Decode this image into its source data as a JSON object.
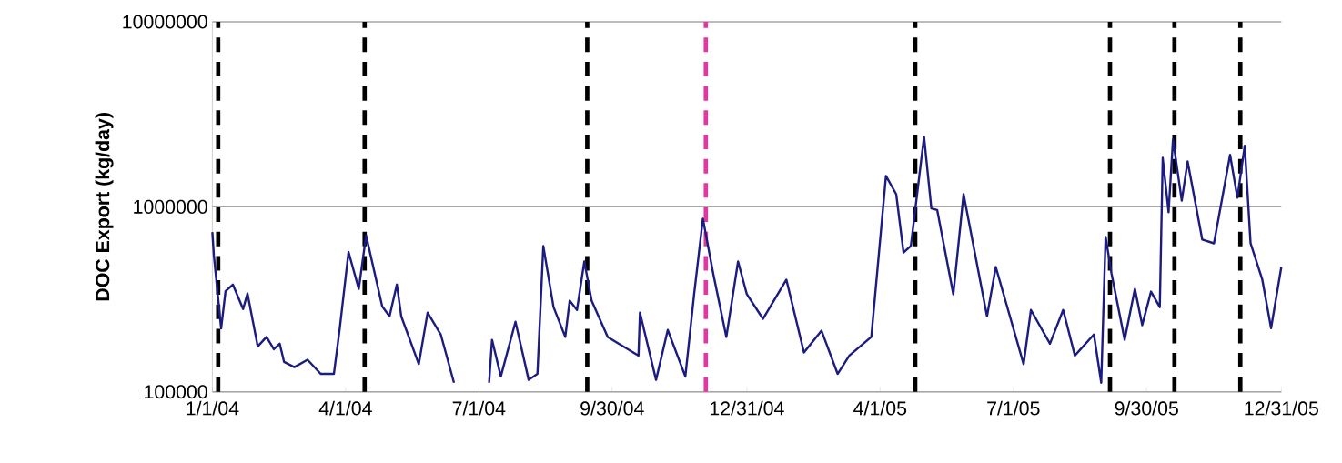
{
  "chart_data": {
    "type": "line",
    "ylabel": "DOC Export (kg/day)",
    "log": "y",
    "grid": "y",
    "marker": "none",
    "line_style": "solid",
    "color": "#1c1c80",
    "xlim": [
      "2004-01-01",
      "2005-12-31"
    ],
    "xticks": [
      {
        "value": "2004-01-01",
        "label": "1/1/04"
      },
      {
        "value": "2004-04-01",
        "label": "4/1/04"
      },
      {
        "value": "2004-07-01",
        "label": "7/1/04"
      },
      {
        "value": "2004-09-30",
        "label": "9/30/04"
      },
      {
        "value": "2004-12-31",
        "label": "12/31/04"
      },
      {
        "value": "2005-04-01",
        "label": "4/1/05"
      },
      {
        "value": "2005-07-01",
        "label": "7/1/05"
      },
      {
        "value": "2005-09-30",
        "label": "9/30/05"
      },
      {
        "value": "2005-12-31",
        "label": "12/31/05"
      }
    ],
    "ylim": [
      100000,
      10000000
    ],
    "yticks": [
      100000,
      1000000,
      10000000
    ],
    "x": [
      "2004-01-01",
      "2004-01-02",
      "2004-01-07",
      "2004-01-10",
      "2004-01-15",
      "2004-01-22",
      "2004-01-25",
      "2004-02-01",
      "2004-02-07",
      "2004-02-12",
      "2004-02-16",
      "2004-02-19",
      "2004-02-26",
      "2004-03-06",
      "2004-03-15",
      "2004-03-24",
      "2004-03-28",
      "2004-04-03",
      "2004-04-10",
      "2004-04-15",
      "2004-04-26",
      "2004-05-01",
      "2004-05-06",
      "2004-05-09",
      "2004-05-21",
      "2004-05-27",
      "2004-06-05",
      "2004-06-14",
      "2004-06-25",
      "2004-07-08",
      "2004-07-10",
      "2004-07-16",
      "2004-07-26",
      "2004-08-04",
      "2004-08-10",
      "2004-08-14",
      "2004-08-21",
      "2004-08-29",
      "2004-09-01",
      "2004-09-06",
      "2004-09-11",
      "2004-09-16",
      "2004-09-27",
      "2004-10-18",
      "2004-10-19",
      "2004-10-30",
      "2004-11-07",
      "2004-11-19",
      "2004-11-25",
      "2004-12-01",
      "2004-12-08",
      "2004-12-17",
      "2004-12-25",
      "2004-12-31",
      "2005-01-11",
      "2005-01-27",
      "2005-02-08",
      "2005-02-20",
      "2005-03-03",
      "2005-03-11",
      "2005-03-26",
      "2005-04-05",
      "2005-04-12",
      "2005-04-17",
      "2005-04-22",
      "2005-05-01",
      "2005-05-06",
      "2005-05-10",
      "2005-05-21",
      "2005-05-28",
      "2005-06-13",
      "2005-06-19",
      "2005-07-08",
      "2005-07-13",
      "2005-07-26",
      "2005-08-04",
      "2005-08-12",
      "2005-08-25",
      "2005-08-30",
      "2005-09-02",
      "2005-09-06",
      "2005-09-15",
      "2005-09-22",
      "2005-09-27",
      "2005-10-03",
      "2005-10-09",
      "2005-10-11",
      "2005-10-15",
      "2005-10-18",
      "2005-10-24",
      "2005-10-28",
      "2005-11-07",
      "2005-11-15",
      "2005-11-26",
      "2005-12-01",
      "2005-12-06",
      "2005-12-10",
      "2005-12-18",
      "2005-12-24",
      "2005-12-31"
    ],
    "values": [
      730000,
      550000,
      220000,
      350000,
      380000,
      280000,
      340000,
      176000,
      198000,
      170000,
      182000,
      145000,
      136000,
      149000,
      125000,
      125000,
      220000,
      570000,
      360000,
      700000,
      290000,
      256000,
      380000,
      256000,
      141000,
      268000,
      204000,
      112000,
      null,
      112000,
      191000,
      121000,
      239000,
      116000,
      125000,
      614000,
      287000,
      198000,
      311000,
      277000,
      506000,
      311000,
      198000,
      157000,
      268000,
      116000,
      216000,
      121000,
      337000,
      863000,
      437000,
      198000,
      506000,
      337000,
      248000,
      404000,
      163000,
      214000,
      125000,
      157000,
      198000,
      1470000,
      1170000,
      567000,
      614000,
      2390000,
      980000,
      960000,
      337000,
      1170000,
      256000,
      473000,
      141000,
      277000,
      182000,
      277000,
      157000,
      204000,
      112000,
      688000,
      437000,
      191000,
      360000,
      229000,
      348000,
      287000,
      1840000,
      934000,
      2310000,
      1080000,
      1760000,
      665000,
      635000,
      1910000,
      1120000,
      2140000,
      635000,
      404000,
      221000,
      473000
    ],
    "ref_lines": [
      {
        "axis": "x",
        "value": "2004-01-05",
        "color": "#000000",
        "line_style": "dashed"
      },
      {
        "axis": "x",
        "value": "2004-04-14",
        "color": "#000000",
        "line_style": "dashed"
      },
      {
        "axis": "x",
        "value": "2004-09-13",
        "color": "#000000",
        "line_style": "dashed"
      },
      {
        "axis": "x",
        "value": "2004-12-03",
        "color": "#e0389e",
        "line_style": "dashed"
      },
      {
        "axis": "x",
        "value": "2005-04-25",
        "color": "#000000",
        "line_style": "dashed"
      },
      {
        "axis": "x",
        "value": "2005-09-05",
        "color": "#000000",
        "line_style": "dashed"
      },
      {
        "axis": "x",
        "value": "2005-10-19",
        "color": "#000000",
        "line_style": "dashed"
      },
      {
        "axis": "x",
        "value": "2005-12-03",
        "color": "#000000",
        "line_style": "dashed"
      }
    ]
  }
}
